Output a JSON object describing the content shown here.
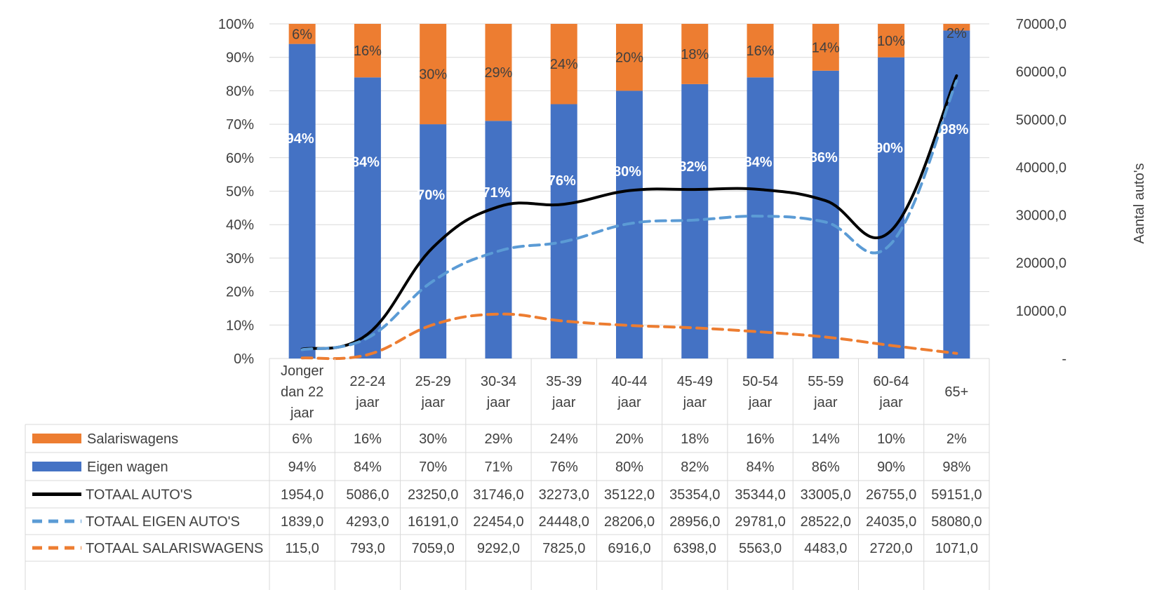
{
  "chart_data": {
    "type": "bar",
    "stacked": true,
    "categories": [
      [
        "Jonger",
        "dan 22",
        "jaar"
      ],
      [
        "22-24",
        "jaar"
      ],
      [
        "25-29",
        "jaar"
      ],
      [
        "30-34",
        "jaar"
      ],
      [
        "35-39",
        "jaar"
      ],
      [
        "40-44",
        "jaar"
      ],
      [
        "45-49",
        "jaar"
      ],
      [
        "50-54",
        "jaar"
      ],
      [
        "55-59",
        "jaar"
      ],
      [
        "60-64",
        "jaar"
      ],
      [
        "65+"
      ]
    ],
    "y_left": {
      "ticks": [
        "0%",
        "10%",
        "20%",
        "30%",
        "40%",
        "50%",
        "60%",
        "70%",
        "80%",
        "90%",
        "100%"
      ],
      "range": [
        0,
        100
      ]
    },
    "y_right": {
      "label": "Aantal auto's",
      "ticks": [
        "-",
        "10000,0",
        "20000,0",
        "30000,0",
        "40000,0",
        "50000,0",
        "60000,0",
        "70000,0"
      ],
      "range": [
        0,
        70000
      ]
    },
    "grid": true,
    "legend": "data-table",
    "series": [
      {
        "name": "Salariswagens",
        "kind": "bar",
        "axis": "left",
        "color": "#ED7D31",
        "values": [
          6,
          16,
          30,
          29,
          24,
          20,
          18,
          16,
          14,
          10,
          2
        ],
        "labels": [
          "6%",
          "16%",
          "30%",
          "29%",
          "24%",
          "20%",
          "18%",
          "16%",
          "14%",
          "10%",
          "2%"
        ]
      },
      {
        "name": "Eigen wagen",
        "kind": "bar",
        "axis": "left",
        "color": "#4472C4",
        "values": [
          94,
          84,
          70,
          71,
          76,
          80,
          82,
          84,
          86,
          90,
          98
        ],
        "labels": [
          "94%",
          "84%",
          "70%",
          "71%",
          "76%",
          "80%",
          "82%",
          "84%",
          "86%",
          "90%",
          "98%"
        ]
      },
      {
        "name": "TOTAAL AUTO'S",
        "kind": "line",
        "style": "solid",
        "axis": "right",
        "color": "#000000",
        "values": [
          1954,
          5086,
          23250,
          31746,
          32273,
          35122,
          35354,
          35344,
          33005,
          26755,
          59151
        ],
        "labels": [
          "1954,0",
          "5086,0",
          "23250,0",
          "31746,0",
          "32273,0",
          "35122,0",
          "35354,0",
          "35344,0",
          "33005,0",
          "26755,0",
          "59151,0"
        ]
      },
      {
        "name": "TOTAAL EIGEN AUTO'S",
        "kind": "line",
        "style": "dashed",
        "axis": "right",
        "color": "#5B9BD5",
        "values": [
          1839,
          4293,
          16191,
          22454,
          24448,
          28206,
          28956,
          29781,
          28522,
          24035,
          58080
        ],
        "labels": [
          "1839,0",
          "4293,0",
          "16191,0",
          "22454,0",
          "24448,0",
          "28206,0",
          "28956,0",
          "29781,0",
          "28522,0",
          "24035,0",
          "58080,0"
        ]
      },
      {
        "name": "TOTAAL SALARISWAGENS",
        "kind": "line",
        "style": "dashed",
        "axis": "right",
        "color": "#ED7D31",
        "values": [
          115,
          793,
          7059,
          9292,
          7825,
          6916,
          6398,
          5563,
          4483,
          2720,
          1071
        ],
        "labels": [
          "115,0",
          "793,0",
          "7059,0",
          "9292,0",
          "7825,0",
          "6916,0",
          "6398,0",
          "5563,0",
          "4483,0",
          "2720,0",
          "1071,0"
        ]
      }
    ]
  }
}
